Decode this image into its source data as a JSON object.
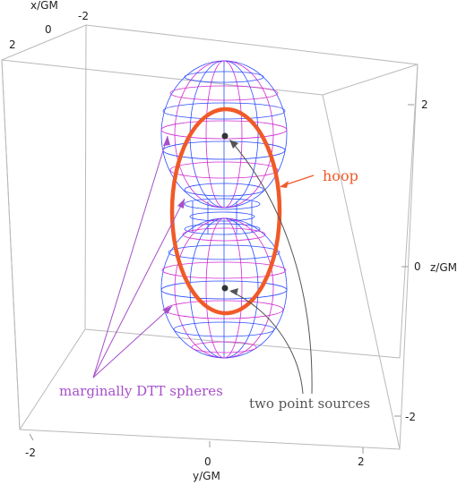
{
  "figure": {
    "axes": {
      "x_label": "x/GM",
      "y_label": "y/GM",
      "z_label": "z/GM",
      "x_ticks": [
        "-2",
        "0",
        "2"
      ],
      "y_ticks": [
        "-2",
        "0",
        "2"
      ],
      "z_ticks": [
        "2",
        "0",
        "-2"
      ]
    },
    "annotations": {
      "hoop": "hoop",
      "spheres": "marginally DTT spheres",
      "sources": "two point sources"
    },
    "colors": {
      "mesh_blue": "#2b4cff",
      "mesh_magenta": "#d12cd1",
      "hoop": "#f05a28",
      "sphere_label": "#a64fc8",
      "source_label": "#555555",
      "box": "#b9b9b9"
    }
  }
}
